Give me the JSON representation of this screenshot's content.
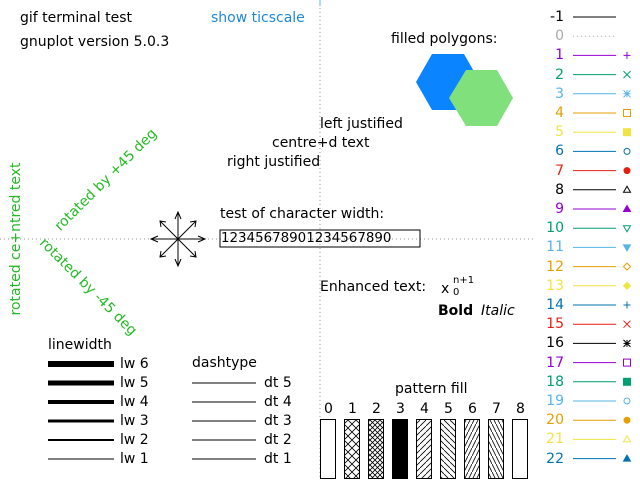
{
  "header": {
    "title": "gif  terminal test",
    "version": "gnuplot version 5.0.3",
    "show_ticscale": "show ticscale"
  },
  "polygons": {
    "label": "filled polygons:",
    "colors": [
      "#0a84ff",
      "#7fe07c"
    ]
  },
  "justify": {
    "left": "left justified",
    "centre": "centre+d text",
    "right": "right justified"
  },
  "charwidth": {
    "label": "test of character width:",
    "sample": "12345678901234567890"
  },
  "rotated": {
    "plus45": "rotated by +45 deg",
    "minus45": "rotated by -45 deg",
    "centred": "rotated ce+ntred text",
    "color": "#22bb22"
  },
  "enhanced": {
    "label": "Enhanced text:",
    "base": "x",
    "sup": "n+1",
    "sub": "0",
    "bold": "Bold",
    "italic": "Italic"
  },
  "linewidth": {
    "title": "linewidth",
    "items": [
      "lw 6",
      "lw 5",
      "lw 4",
      "lw 3",
      "lw 2",
      "lw 1"
    ],
    "widths": [
      6,
      5,
      4,
      3,
      2,
      1
    ]
  },
  "dashtype": {
    "title": "dashtype",
    "items": [
      "dt 5",
      "dt 4",
      "dt 3",
      "dt 2",
      "dt 1"
    ]
  },
  "pattern": {
    "title": "pattern fill",
    "numbers": [
      "0",
      "1",
      "2",
      "3",
      "4",
      "5",
      "6",
      "7",
      "8"
    ]
  },
  "linetypes": [
    {
      "label": "-1",
      "color": "#000000",
      "marker": ""
    },
    {
      "label": "0",
      "color": "#aaaaaa",
      "marker": "dots"
    },
    {
      "label": "1",
      "color": "#9400d3",
      "marker": "plus"
    },
    {
      "label": "2",
      "color": "#009e73",
      "marker": "cross"
    },
    {
      "label": "3",
      "color": "#56b4e9",
      "marker": "star"
    },
    {
      "label": "4",
      "color": "#e69f00",
      "marker": "box"
    },
    {
      "label": "5",
      "color": "#f0e442",
      "marker": "fbox"
    },
    {
      "label": "6",
      "color": "#0072b2",
      "marker": "circle"
    },
    {
      "label": "7",
      "color": "#e51e10",
      "marker": "fcircle"
    },
    {
      "label": "8",
      "color": "#000000",
      "marker": "tri"
    },
    {
      "label": "9",
      "color": "#9400d3",
      "marker": "ftri"
    },
    {
      "label": "10",
      "color": "#009e73",
      "marker": "itri"
    },
    {
      "label": "11",
      "color": "#56b4e9",
      "marker": "fitri"
    },
    {
      "label": "12",
      "color": "#e69f00",
      "marker": "diamond"
    },
    {
      "label": "13",
      "color": "#f0e442",
      "marker": "fdiamond"
    },
    {
      "label": "14",
      "color": "#0072b2",
      "marker": "plus"
    },
    {
      "label": "15",
      "color": "#e51e10",
      "marker": "cross"
    },
    {
      "label": "16",
      "color": "#000000",
      "marker": "star"
    },
    {
      "label": "17",
      "color": "#9400d3",
      "marker": "box"
    },
    {
      "label": "18",
      "color": "#009e73",
      "marker": "fbox"
    },
    {
      "label": "19",
      "color": "#56b4e9",
      "marker": "circle"
    },
    {
      "label": "20",
      "color": "#e69f00",
      "marker": "fcircle"
    },
    {
      "label": "21",
      "color": "#f0e442",
      "marker": "tri"
    },
    {
      "label": "22",
      "color": "#0072b2",
      "marker": "ftri"
    }
  ]
}
